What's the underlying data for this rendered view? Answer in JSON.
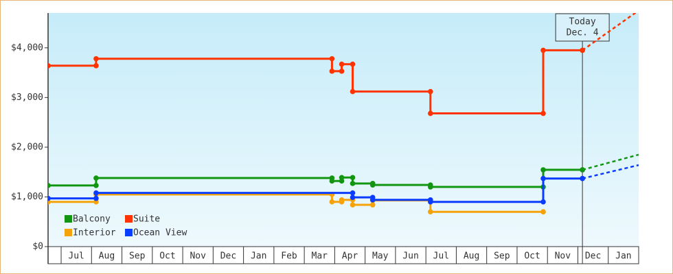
{
  "chart_data": {
    "type": "step",
    "ylim": [
      0,
      4700
    ],
    "yticks": [
      {
        "value": 0,
        "label": "$0"
      },
      {
        "value": 1000,
        "label": "$1,000"
      },
      {
        "value": 2000,
        "label": "$2,000"
      },
      {
        "value": 3000,
        "label": "$3,000"
      },
      {
        "value": 4000,
        "label": "$4,000"
      }
    ],
    "xlim": [
      -0.43,
      19
    ],
    "xticks": [
      {
        "value": 0.5,
        "label": "Jul"
      },
      {
        "value": 1.5,
        "label": "Aug"
      },
      {
        "value": 2.5,
        "label": "Sep"
      },
      {
        "value": 3.5,
        "label": "Oct"
      },
      {
        "value": 4.5,
        "label": "Nov"
      },
      {
        "value": 5.5,
        "label": "Dec"
      },
      {
        "value": 6.5,
        "label": "Jan"
      },
      {
        "value": 7.5,
        "label": "Feb"
      },
      {
        "value": 8.5,
        "label": "Mar"
      },
      {
        "value": 9.5,
        "label": "Apr"
      },
      {
        "value": 10.5,
        "label": "May"
      },
      {
        "value": 11.5,
        "label": "Jun"
      },
      {
        "value": 12.5,
        "label": "Jul"
      },
      {
        "value": 13.5,
        "label": "Aug"
      },
      {
        "value": 14.5,
        "label": "Sep"
      },
      {
        "value": 15.5,
        "label": "Oct"
      },
      {
        "value": 16.5,
        "label": "Nov"
      },
      {
        "value": 17.5,
        "label": "Dec"
      },
      {
        "value": 18.5,
        "label": "Jan"
      }
    ],
    "legend": "lower left",
    "annotation": {
      "x": 17.15,
      "lines": [
        "Today",
        "Dec. 4"
      ]
    },
    "series": [
      {
        "name": "Balcony",
        "color": "#129612",
        "x": [
          -0.43,
          1.15,
          8.91,
          9.23,
          9.59,
          10.25,
          12.15,
          15.86,
          17.15
        ],
        "values": [
          1230,
          1380,
          1320,
          1390,
          1270,
          1240,
          1200,
          1545,
          1545
        ],
        "forecast": {
          "x": [
            17.15,
            19
          ],
          "values": [
            1545,
            1850
          ]
        }
      },
      {
        "name": "Suite",
        "color": "#ff3300",
        "x": [
          -0.43,
          1.15,
          8.91,
          9.23,
          9.59,
          12.15,
          15.86,
          17.15
        ],
        "values": [
          3640,
          3780,
          3530,
          3670,
          3120,
          2680,
          3950,
          3950
        ],
        "forecast": {
          "x": [
            17.15,
            19
          ],
          "values": [
            3950,
            4750
          ]
        }
      },
      {
        "name": "Interior",
        "color": "#f5a30a",
        "x": [
          -0.43,
          1.15,
          8.91,
          9.23,
          9.59,
          10.25,
          12.15,
          15.86
        ],
        "values": [
          900,
          1050,
          900,
          940,
          840,
          930,
          700,
          700
        ]
      },
      {
        "name": "Ocean View",
        "color": "#0a3cff",
        "x": [
          -0.43,
          1.15,
          9.59,
          10.25,
          12.15,
          15.86,
          17.15
        ],
        "values": [
          970,
          1080,
          990,
          940,
          900,
          1370,
          1370
        ],
        "forecast": {
          "x": [
            17.15,
            19
          ],
          "values": [
            1370,
            1640
          ]
        }
      }
    ]
  }
}
